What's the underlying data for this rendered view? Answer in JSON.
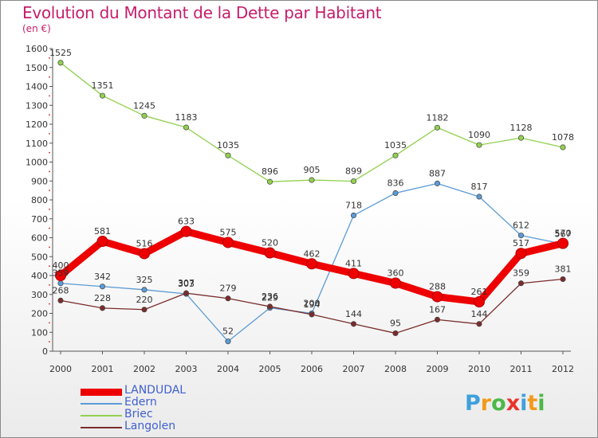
{
  "header": {
    "title": "Evolution du Montant de la Dette par Habitant",
    "subtitle": "(en €)"
  },
  "logo": {
    "letters": [
      "P",
      "r",
      "o",
      "x",
      "i",
      "t",
      "i"
    ],
    "colors": [
      "#3fa0dc",
      "#f29a1c",
      "#4cb848",
      "#e8342c",
      "#3fa0dc",
      "#f29a1c",
      "#4cb848"
    ]
  },
  "chart_data": {
    "type": "line",
    "title": "Evolution du Montant de la Dette par Habitant",
    "ylabel": "(en €)",
    "xlabel": "",
    "categories": [
      "2000",
      "2001",
      "2002",
      "2003",
      "2004",
      "2005",
      "2006",
      "2007",
      "2008",
      "2009",
      "2010",
      "2011",
      "2012"
    ],
    "ylim": [
      0,
      1600
    ],
    "yticks": [
      "0",
      "100",
      "200",
      "300",
      "400",
      "500",
      "600",
      "700",
      "800",
      "900",
      "1000",
      "1100",
      "1200",
      "1300",
      "1400",
      "1500",
      "1600"
    ],
    "grid": false,
    "legend_position": "bottom-left",
    "series": [
      {
        "name": "LANDUDAL",
        "color": "#ee0000",
        "values": [
          400,
          581,
          516,
          633,
          575,
          520,
          462,
          411,
          360,
          288,
          261,
          517,
          570
        ],
        "labels": [
          "400",
          "581",
          "516",
          "633",
          "575",
          "520",
          "462",
          "411",
          "360",
          "288",
          "261",
          "517",
          "570"
        ]
      },
      {
        "name": "Edern",
        "color": "#5b9bd5",
        "values": [
          359,
          342,
          325,
          303,
          52,
          229,
          200,
          718,
          836,
          887,
          817,
          612,
          567
        ],
        "labels": [
          "359",
          "342",
          "325",
          "303",
          "52",
          "229",
          "200",
          "718",
          "836",
          "887",
          "817",
          "612",
          "567"
        ]
      },
      {
        "name": "Briec",
        "color": "#92d050",
        "values": [
          1525,
          1351,
          1245,
          1183,
          1035,
          896,
          905,
          899,
          1035,
          1182,
          1090,
          1128,
          1078
        ],
        "labels": [
          "1525",
          "1351",
          "1245",
          "1183",
          "1035",
          "896",
          "905",
          "899",
          "1035",
          "1182",
          "1090",
          "1128",
          "1078"
        ]
      },
      {
        "name": "Langolen",
        "color": "#7b2c2c",
        "values": [
          268,
          228,
          220,
          307,
          279,
          236,
          194,
          144,
          95,
          167,
          144,
          359,
          381
        ],
        "labels": [
          "268",
          "228",
          "220",
          "307",
          "279",
          "236",
          "194",
          "144",
          "95",
          "167",
          "144",
          "359",
          "381"
        ]
      }
    ]
  }
}
